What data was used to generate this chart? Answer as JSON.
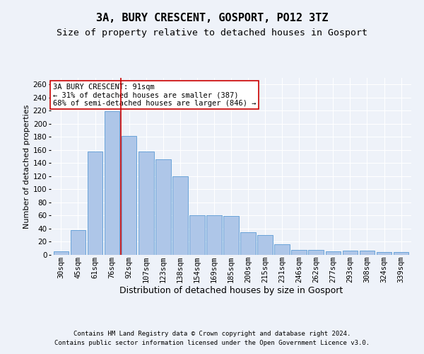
{
  "title_line1": "3A, BURY CRESCENT, GOSPORT, PO12 3TZ",
  "title_line2": "Size of property relative to detached houses in Gosport",
  "xlabel": "Distribution of detached houses by size in Gosport",
  "ylabel": "Number of detached properties",
  "categories": [
    "30sqm",
    "45sqm",
    "61sqm",
    "76sqm",
    "92sqm",
    "107sqm",
    "123sqm",
    "138sqm",
    "154sqm",
    "169sqm",
    "185sqm",
    "200sqm",
    "215sqm",
    "231sqm",
    "246sqm",
    "262sqm",
    "277sqm",
    "293sqm",
    "308sqm",
    "324sqm",
    "339sqm"
  ],
  "values": [
    5,
    38,
    158,
    219,
    181,
    158,
    146,
    120,
    60,
    60,
    59,
    35,
    30,
    16,
    8,
    8,
    5,
    6,
    6,
    4,
    4
  ],
  "bar_color": "#aec6e8",
  "bar_edge_color": "#5b9bd5",
  "vline_pos": 3.5,
  "vline_color": "#cc0000",
  "annotation_text": "3A BURY CRESCENT: 91sqm\n← 31% of detached houses are smaller (387)\n68% of semi-detached houses are larger (846) →",
  "annotation_box_color": "#ffffff",
  "annotation_box_edge": "#cc0000",
  "ylim": [
    0,
    270
  ],
  "yticks": [
    0,
    20,
    40,
    60,
    80,
    100,
    120,
    140,
    160,
    180,
    200,
    220,
    240,
    260
  ],
  "footer1": "Contains HM Land Registry data © Crown copyright and database right 2024.",
  "footer2": "Contains public sector information licensed under the Open Government Licence v3.0.",
  "bg_color": "#eef2f9",
  "grid_color": "#ffffff",
  "title1_fontsize": 11,
  "title2_fontsize": 9.5,
  "xlabel_fontsize": 9,
  "ylabel_fontsize": 8,
  "tick_fontsize": 7.5,
  "annot_fontsize": 7.5,
  "footer_fontsize": 6.5
}
